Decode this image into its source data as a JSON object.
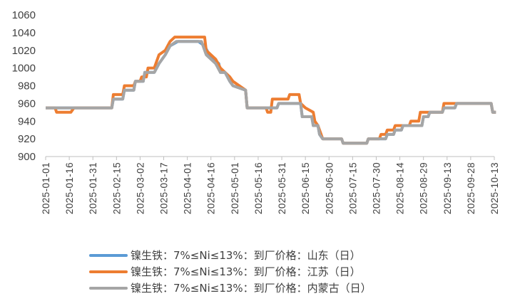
{
  "colors": {
    "shandong": "#5B9BD5",
    "jiangsu": "#ED7D31",
    "neimenggu": "#A5A5A5",
    "axis": "#BFBFBF",
    "text": "#404040"
  },
  "chart_data": {
    "type": "line",
    "ylim": [
      900,
      1060
    ],
    "yticks": [
      900,
      920,
      940,
      960,
      980,
      1000,
      1020,
      1040,
      1060
    ],
    "x_start": "2025-01-01",
    "x_end": "2025-10-13",
    "xticks": [
      "2025-01-01",
      "2025-01-16",
      "2025-01-31",
      "2025-02-15",
      "2025-03-02",
      "2025-03-17",
      "2025-04-01",
      "2025-04-16",
      "2025-05-01",
      "2025-05-16",
      "2025-05-31",
      "2025-06-15",
      "2025-06-30",
      "2025-07-15",
      "2025-07-30",
      "2025-08-14",
      "2025-08-29",
      "2025-09-13",
      "2025-09-28",
      "2025-10-13"
    ],
    "legend_position": "bottom",
    "series": [
      {
        "name": "镍生铁：7%≤Ni≤13%：到厂价格：山东（日）",
        "color_key": "shandong",
        "points": [
          [
            "2025-01-01",
            955
          ],
          [
            "2025-02-12",
            955
          ],
          [
            "2025-02-13",
            965
          ],
          [
            "2025-02-19",
            965
          ],
          [
            "2025-02-20",
            975
          ],
          [
            "2025-02-26",
            975
          ],
          [
            "2025-02-27",
            985
          ],
          [
            "2025-03-04",
            985
          ],
          [
            "2025-03-05",
            995
          ],
          [
            "2025-03-11",
            995
          ],
          [
            "2025-03-14",
            1005
          ],
          [
            "2025-03-18",
            1015
          ],
          [
            "2025-03-21",
            1025
          ],
          [
            "2025-03-26",
            1030
          ],
          [
            "2025-04-08",
            1030
          ],
          [
            "2025-04-12",
            1025
          ],
          [
            "2025-04-15",
            1015
          ],
          [
            "2025-04-18",
            1010
          ],
          [
            "2025-04-21",
            1005
          ],
          [
            "2025-04-22",
            995
          ],
          [
            "2025-04-25",
            995
          ],
          [
            "2025-04-28",
            985
          ],
          [
            "2025-04-30",
            980
          ],
          [
            "2025-05-08",
            975
          ],
          [
            "2025-05-09",
            955
          ],
          [
            "2025-05-28",
            955
          ],
          [
            "2025-05-29",
            960
          ],
          [
            "2025-06-12",
            960
          ],
          [
            "2025-06-13",
            945
          ],
          [
            "2025-06-19",
            945
          ],
          [
            "2025-06-20",
            935
          ],
          [
            "2025-06-23",
            935
          ],
          [
            "2025-06-24",
            925
          ],
          [
            "2025-06-26",
            920
          ],
          [
            "2025-07-08",
            920
          ],
          [
            "2025-07-09",
            915
          ],
          [
            "2025-07-24",
            915
          ],
          [
            "2025-07-25",
            920
          ],
          [
            "2025-08-05",
            920
          ],
          [
            "2025-08-06",
            925
          ],
          [
            "2025-08-10",
            925
          ],
          [
            "2025-08-11",
            930
          ],
          [
            "2025-08-15",
            930
          ],
          [
            "2025-08-16",
            935
          ],
          [
            "2025-08-28",
            935
          ],
          [
            "2025-08-29",
            945
          ],
          [
            "2025-09-01",
            945
          ],
          [
            "2025-09-02",
            950
          ],
          [
            "2025-09-10",
            950
          ],
          [
            "2025-09-11",
            955
          ],
          [
            "2025-09-18",
            955
          ],
          [
            "2025-09-19",
            960
          ],
          [
            "2025-10-11",
            960
          ],
          [
            "2025-10-12",
            950
          ],
          [
            "2025-10-14",
            950
          ]
        ]
      },
      {
        "name": "镍生铁：7%≤Ni≤13%：到厂价格：江苏（日）",
        "color_key": "jiangsu",
        "points": [
          [
            "2025-01-01",
            955
          ],
          [
            "2025-01-07",
            955
          ],
          [
            "2025-01-08",
            950
          ],
          [
            "2025-01-17",
            950
          ],
          [
            "2025-01-19",
            955
          ],
          [
            "2025-02-12",
            955
          ],
          [
            "2025-02-13",
            970
          ],
          [
            "2025-02-19",
            970
          ],
          [
            "2025-02-20",
            980
          ],
          [
            "2025-02-26",
            980
          ],
          [
            "2025-02-27",
            985
          ],
          [
            "2025-03-02",
            985
          ],
          [
            "2025-03-03",
            990
          ],
          [
            "2025-03-06",
            990
          ],
          [
            "2025-03-07",
            1000
          ],
          [
            "2025-03-11",
            1000
          ],
          [
            "2025-03-14",
            1015
          ],
          [
            "2025-03-18",
            1020
          ],
          [
            "2025-03-21",
            1030
          ],
          [
            "2025-03-24",
            1035
          ],
          [
            "2025-04-12",
            1035
          ],
          [
            "2025-04-13",
            1020
          ],
          [
            "2025-04-16",
            1015
          ],
          [
            "2025-04-19",
            1010
          ],
          [
            "2025-04-22",
            1000
          ],
          [
            "2025-04-25",
            995
          ],
          [
            "2025-04-28",
            990
          ],
          [
            "2025-04-30",
            985
          ],
          [
            "2025-05-08",
            975
          ],
          [
            "2025-05-09",
            955
          ],
          [
            "2025-05-21",
            955
          ],
          [
            "2025-05-22",
            950
          ],
          [
            "2025-05-24",
            950
          ],
          [
            "2025-05-25",
            965
          ],
          [
            "2025-06-04",
            965
          ],
          [
            "2025-06-05",
            970
          ],
          [
            "2025-06-11",
            970
          ],
          [
            "2025-06-12",
            960
          ],
          [
            "2025-06-15",
            955
          ],
          [
            "2025-06-20",
            950
          ],
          [
            "2025-06-21",
            940
          ],
          [
            "2025-06-23",
            935
          ],
          [
            "2025-06-26",
            920
          ],
          [
            "2025-07-08",
            920
          ],
          [
            "2025-07-09",
            915
          ],
          [
            "2025-07-24",
            915
          ],
          [
            "2025-07-25",
            920
          ],
          [
            "2025-08-01",
            920
          ],
          [
            "2025-08-02",
            925
          ],
          [
            "2025-08-05",
            925
          ],
          [
            "2025-08-06",
            930
          ],
          [
            "2025-08-10",
            930
          ],
          [
            "2025-08-11",
            935
          ],
          [
            "2025-08-20",
            935
          ],
          [
            "2025-08-21",
            940
          ],
          [
            "2025-08-26",
            940
          ],
          [
            "2025-08-27",
            950
          ],
          [
            "2025-09-01",
            950
          ],
          [
            "2025-09-10",
            950
          ],
          [
            "2025-09-11",
            960
          ],
          [
            "2025-10-11",
            960
          ],
          [
            "2025-10-12",
            950
          ],
          [
            "2025-10-14",
            950
          ]
        ]
      },
      {
        "name": "镍生铁：7%≤Ni≤13%：到厂价格：内蒙古（日）",
        "color_key": "neimenggu",
        "points": [
          [
            "2025-01-01",
            955
          ],
          [
            "2025-02-12",
            955
          ],
          [
            "2025-02-13",
            965
          ],
          [
            "2025-02-19",
            965
          ],
          [
            "2025-02-20",
            975
          ],
          [
            "2025-02-26",
            975
          ],
          [
            "2025-02-27",
            985
          ],
          [
            "2025-03-04",
            985
          ],
          [
            "2025-03-05",
            995
          ],
          [
            "2025-03-11",
            995
          ],
          [
            "2025-03-14",
            1005
          ],
          [
            "2025-03-18",
            1015
          ],
          [
            "2025-03-21",
            1025
          ],
          [
            "2025-03-25",
            1030
          ],
          [
            "2025-04-10",
            1030
          ],
          [
            "2025-04-13",
            1015
          ],
          [
            "2025-04-16",
            1010
          ],
          [
            "2025-04-19",
            1005
          ],
          [
            "2025-04-22",
            995
          ],
          [
            "2025-04-25",
            995
          ],
          [
            "2025-04-28",
            985
          ],
          [
            "2025-04-30",
            980
          ],
          [
            "2025-05-08",
            975
          ],
          [
            "2025-05-09",
            955
          ],
          [
            "2025-05-28",
            955
          ],
          [
            "2025-05-29",
            960
          ],
          [
            "2025-06-12",
            960
          ],
          [
            "2025-06-13",
            945
          ],
          [
            "2025-06-19",
            945
          ],
          [
            "2025-06-20",
            935
          ],
          [
            "2025-06-23",
            935
          ],
          [
            "2025-06-24",
            925
          ],
          [
            "2025-06-26",
            920
          ],
          [
            "2025-07-08",
            920
          ],
          [
            "2025-07-09",
            915
          ],
          [
            "2025-07-24",
            915
          ],
          [
            "2025-07-25",
            920
          ],
          [
            "2025-08-05",
            920
          ],
          [
            "2025-08-06",
            925
          ],
          [
            "2025-08-10",
            925
          ],
          [
            "2025-08-11",
            930
          ],
          [
            "2025-08-15",
            930
          ],
          [
            "2025-08-16",
            935
          ],
          [
            "2025-08-28",
            935
          ],
          [
            "2025-08-29",
            945
          ],
          [
            "2025-09-01",
            945
          ],
          [
            "2025-09-02",
            950
          ],
          [
            "2025-09-10",
            950
          ],
          [
            "2025-09-11",
            955
          ],
          [
            "2025-09-18",
            955
          ],
          [
            "2025-09-19",
            960
          ],
          [
            "2025-10-11",
            960
          ],
          [
            "2025-10-12",
            950
          ],
          [
            "2025-10-14",
            950
          ]
        ]
      }
    ]
  }
}
